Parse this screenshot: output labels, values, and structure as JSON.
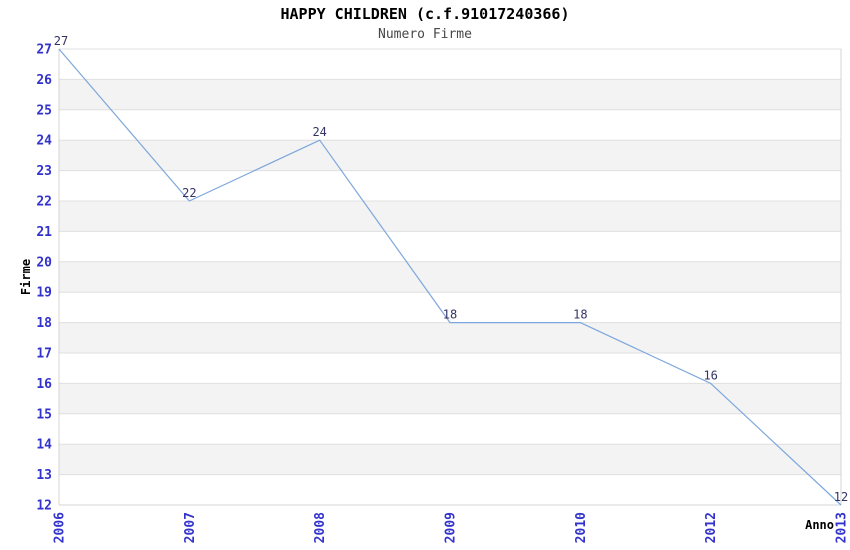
{
  "chart_data": {
    "type": "line",
    "title": "HAPPY CHILDREN (c.f.91017240366)",
    "subtitle": "Numero Firme",
    "xlabel": "Anno",
    "ylabel": "Firme",
    "categories": [
      "2006",
      "2007",
      "2008",
      "2009",
      "2010",
      "2012",
      "2013"
    ],
    "series": [
      {
        "name": "Numero Firme",
        "values": [
          27,
          22,
          24,
          18,
          18,
          16,
          12
        ]
      }
    ],
    "point_labels": [
      "27",
      "22",
      "24",
      "18",
      "18",
      "16",
      "12"
    ],
    "ylim": [
      12,
      27
    ],
    "ytick_step": 1,
    "ytick_labels": [
      "12",
      "13",
      "14",
      "15",
      "16",
      "17",
      "18",
      "19",
      "20",
      "21",
      "22",
      "23",
      "24",
      "25",
      "26",
      "27"
    ],
    "grid": "horizontal",
    "alternating_bands": true,
    "legend": "none",
    "colors": {
      "line": "#7da7dc",
      "tick_label": "#3232cd",
      "point_label": "#333366",
      "grid_line": "#e0e0e0",
      "band_fill": "#f3f3f3",
      "axis_border": "#d4d4d4",
      "title": "#000000",
      "subtitle": "#474747",
      "axis_title": "#000000"
    }
  }
}
